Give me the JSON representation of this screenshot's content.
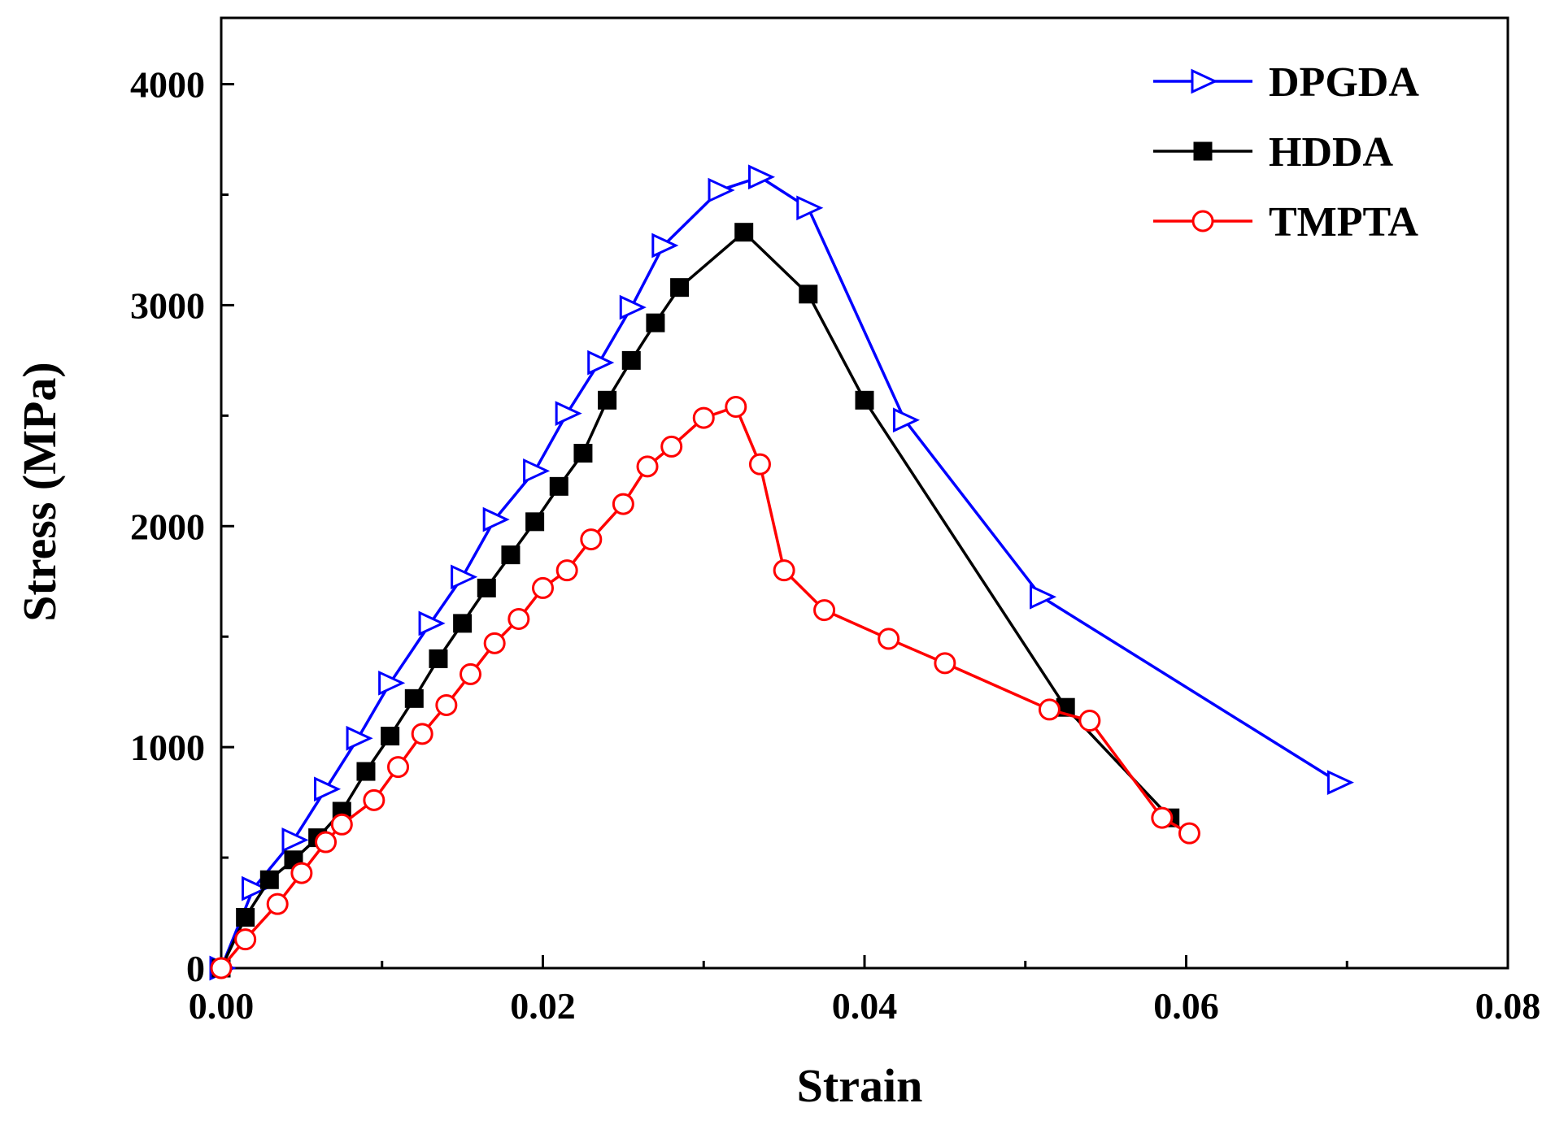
{
  "chart_data": {
    "type": "line",
    "title": "",
    "xlabel": "Strain",
    "ylabel": "Stress (MPa)",
    "xlim": [
      0,
      0.08
    ],
    "ylim": [
      0,
      4300
    ],
    "x_ticks": [
      0,
      0.02,
      0.04,
      0.06,
      0.08
    ],
    "x_tick_labels": [
      "0.00",
      "0.02",
      "0.04",
      "0.06",
      "0.08"
    ],
    "y_ticks": [
      0,
      1000,
      2000,
      3000,
      4000
    ],
    "y_tick_labels": [
      "0",
      "1000",
      "2000",
      "3000",
      "4000"
    ],
    "grid": false,
    "legend_position": "top-right",
    "series": [
      {
        "name": "DPGDA",
        "color": "#0000ff",
        "marker": "triangle-right-open",
        "x": [
          0.0,
          0.002,
          0.0045,
          0.0065,
          0.0085,
          0.0105,
          0.013,
          0.015,
          0.017,
          0.0195,
          0.0215,
          0.0235,
          0.0255,
          0.0275,
          0.031,
          0.0335,
          0.0365,
          0.0425,
          0.051,
          0.0695
        ],
        "y": [
          0,
          360,
          580,
          810,
          1040,
          1290,
          1560,
          1770,
          2030,
          2250,
          2510,
          2740,
          2990,
          3270,
          3520,
          3580,
          3440,
          2480,
          1680,
          840
        ]
      },
      {
        "name": "HDDA",
        "color": "#000000",
        "marker": "square-filled",
        "x": [
          0.0,
          0.0015,
          0.003,
          0.0045,
          0.006,
          0.0075,
          0.009,
          0.0105,
          0.012,
          0.0135,
          0.015,
          0.0165,
          0.018,
          0.0195,
          0.021,
          0.0225,
          0.024,
          0.0255,
          0.027,
          0.0285,
          0.0325,
          0.0365,
          0.04,
          0.0525,
          0.059
        ],
        "y": [
          0,
          230,
          400,
          490,
          590,
          710,
          890,
          1050,
          1220,
          1400,
          1560,
          1720,
          1870,
          2020,
          2180,
          2330,
          2570,
          2750,
          2920,
          3080,
          3330,
          3050,
          2570,
          1180,
          680
        ]
      },
      {
        "name": "TMPTA",
        "color": "#ff0000",
        "marker": "circle-open",
        "x": [
          0.0,
          0.0015,
          0.0035,
          0.005,
          0.0065,
          0.0075,
          0.0095,
          0.011,
          0.0125,
          0.014,
          0.0155,
          0.017,
          0.0185,
          0.02,
          0.0215,
          0.023,
          0.025,
          0.0265,
          0.028,
          0.03,
          0.032,
          0.0335,
          0.035,
          0.0375,
          0.0415,
          0.045,
          0.0515,
          0.054,
          0.0585,
          0.0602
        ],
        "y": [
          0,
          130,
          290,
          430,
          570,
          650,
          760,
          910,
          1060,
          1190,
          1330,
          1470,
          1580,
          1720,
          1800,
          1940,
          2100,
          2270,
          2360,
          2490,
          2540,
          2280,
          1800,
          1620,
          1490,
          1380,
          1170,
          1120,
          680,
          610
        ]
      }
    ]
  }
}
